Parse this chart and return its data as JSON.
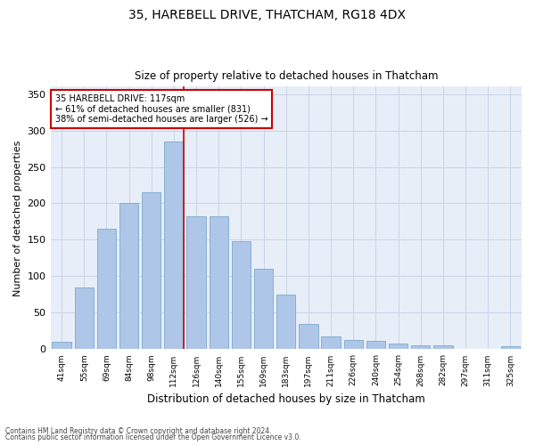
{
  "title1": "35, HAREBELL DRIVE, THATCHAM, RG18 4DX",
  "title2": "Size of property relative to detached houses in Thatcham",
  "xlabel": "Distribution of detached houses by size in Thatcham",
  "ylabel": "Number of detached properties",
  "categories": [
    "41sqm",
    "55sqm",
    "69sqm",
    "84sqm",
    "98sqm",
    "112sqm",
    "126sqm",
    "140sqm",
    "155sqm",
    "169sqm",
    "183sqm",
    "197sqm",
    "211sqm",
    "226sqm",
    "240sqm",
    "254sqm",
    "268sqm",
    "282sqm",
    "297sqm",
    "311sqm",
    "325sqm"
  ],
  "values": [
    10,
    85,
    165,
    200,
    215,
    285,
    182,
    182,
    148,
    110,
    75,
    35,
    18,
    13,
    11,
    8,
    5,
    5,
    1,
    1,
    4
  ],
  "bar_color": "#aec6e8",
  "bar_edge_color": "#7aaace",
  "property_bin_index": 5,
  "annotation_line1": "35 HAREBELL DRIVE: 117sqm",
  "annotation_line2": "← 61% of detached houses are smaller (831)",
  "annotation_line3": "38% of semi-detached houses are larger (526) →",
  "vline_color": "#cc0000",
  "annotation_box_color": "#ffffff",
  "annotation_box_edge": "#cc0000",
  "ylim": [
    0,
    360
  ],
  "yticks": [
    0,
    50,
    100,
    150,
    200,
    250,
    300,
    350
  ],
  "grid_color": "#c8d4e8",
  "bg_color": "#e8eef8",
  "footer1": "Contains HM Land Registry data © Crown copyright and database right 2024.",
  "footer2": "Contains public sector information licensed under the Open Government Licence v3.0."
}
